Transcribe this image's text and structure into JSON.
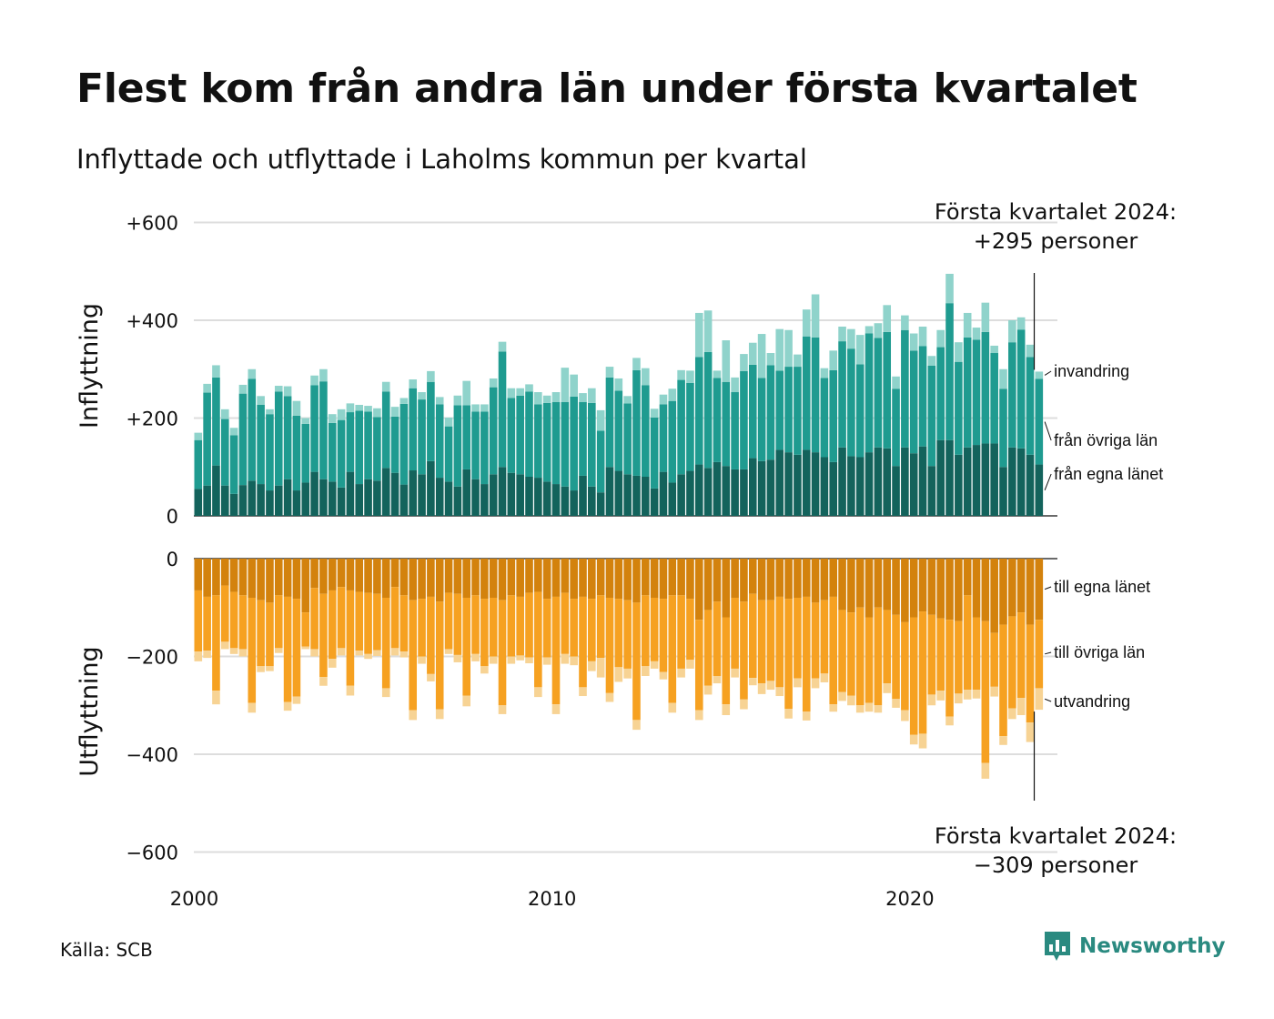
{
  "title": "Flest kom från andra län under första kvartalet",
  "subtitle": "Inflyttade och utflyttade i Laholms kommun per kvartal",
  "source": "Källa: SCB",
  "brand": "Newsworthy",
  "colors": {
    "in_same": "#13635c",
    "in_other": "#1f9b90",
    "in_immig": "#8fd3cb",
    "out_same": "#d3820d",
    "out_other": "#f6a121",
    "out_emig": "#f7d394",
    "grid": "#dddddd"
  },
  "chart_data": {
    "type": "bar",
    "stacked": true,
    "x_ticks": [
      2000,
      2010,
      2020
    ],
    "top_panel": {
      "ylabel": "Inflyttning",
      "ylim": [
        0,
        600
      ],
      "y_ticks": [
        {
          "v": 0,
          "t": "0"
        },
        {
          "v": 200,
          "t": "+200"
        },
        {
          "v": 400,
          "t": "+400"
        },
        {
          "v": 600,
          "t": "+600"
        }
      ],
      "series": [
        {
          "name": "från egna länet",
          "values": [
            55,
            62,
            103,
            62,
            45,
            63,
            72,
            65,
            52,
            62,
            75,
            52,
            68,
            90,
            75,
            70,
            58,
            90,
            65,
            75,
            72,
            98,
            88,
            64,
            93,
            85,
            112,
            78,
            70,
            60,
            95,
            75,
            65,
            85,
            100,
            88,
            85,
            80,
            78,
            70,
            65,
            60,
            52,
            82,
            60,
            48,
            100,
            92,
            85,
            82,
            80,
            56,
            90,
            68,
            85,
            92,
            105,
            98,
            110,
            102,
            95,
            95,
            118,
            112,
            115,
            135,
            130,
            125,
            135,
            130,
            120,
            110,
            140,
            122,
            120,
            130,
            140,
            138,
            102,
            140,
            128,
            142,
            102,
            155,
            155,
            125,
            140,
            145,
            148,
            148,
            100,
            140,
            138,
            125,
            105
          ],
          "label_stack": "från egna länet"
        },
        {
          "name": "från övriga län",
          "values": [
            100,
            190,
            180,
            136,
            120,
            187,
            208,
            162,
            156,
            192,
            170,
            153,
            120,
            177,
            200,
            120,
            138,
            122,
            150,
            138,
            130,
            156,
            115,
            165,
            168,
            153,
            162,
            150,
            113,
            166,
            131,
            138,
            148,
            178,
            236,
            153,
            161,
            174,
            150,
            161,
            168,
            173,
            192,
            151,
            171,
            126,
            183,
            164,
            145,
            216,
            187,
            145,
            138,
            167,
            193,
            180,
            220,
            237,
            172,
            172,
            158,
            201,
            191,
            170,
            193,
            162,
            175,
            180,
            232,
            235,
            162,
            188,
            217,
            220,
            190,
            243,
            224,
            238,
            158,
            240,
            210,
            205,
            205,
            190,
            280,
            190,
            225,
            215,
            228,
            185,
            160,
            215,
            243,
            200,
            175
          ]
        },
        {
          "name": "invandring",
          "values": [
            15,
            18,
            25,
            20,
            15,
            18,
            20,
            18,
            10,
            12,
            20,
            30,
            12,
            20,
            25,
            18,
            22,
            18,
            12,
            12,
            18,
            20,
            20,
            12,
            18,
            15,
            22,
            15,
            18,
            20,
            50,
            15,
            15,
            18,
            20,
            20,
            15,
            15,
            25,
            15,
            20,
            70,
            45,
            18,
            30,
            42,
            22,
            25,
            15,
            25,
            35,
            18,
            20,
            25,
            20,
            25,
            90,
            85,
            15,
            85,
            30,
            35,
            45,
            90,
            25,
            85,
            75,
            25,
            55,
            88,
            20,
            40,
            30,
            40,
            60,
            15,
            30,
            55,
            25,
            30,
            35,
            40,
            20,
            35,
            60,
            40,
            50,
            25,
            60,
            15,
            40,
            45,
            25,
            25,
            15
          ]
        }
      ]
    },
    "bottom_panel": {
      "ylabel": "Utflyttning",
      "ylim": [
        -600,
        0
      ],
      "y_ticks": [
        {
          "v": 0,
          "t": "0"
        },
        {
          "v": -200,
          "t": "−200"
        },
        {
          "v": -400,
          "t": "−400"
        },
        {
          "v": -600,
          "t": "−600"
        }
      ],
      "series": [
        {
          "name": "till egna länet",
          "values": [
            -65,
            -78,
            -75,
            -55,
            -68,
            -75,
            -80,
            -85,
            -90,
            -75,
            -78,
            -82,
            -110,
            -60,
            -72,
            -65,
            -58,
            -65,
            -68,
            -70,
            -72,
            -80,
            -58,
            -75,
            -85,
            -82,
            -78,
            -88,
            -70,
            -72,
            -80,
            -75,
            -82,
            -80,
            -85,
            -75,
            -78,
            -70,
            -68,
            -82,
            -78,
            -70,
            -82,
            -78,
            -82,
            -75,
            -80,
            -82,
            -85,
            -90,
            -75,
            -80,
            -82,
            -75,
            -75,
            -82,
            -125,
            -105,
            -88,
            -120,
            -80,
            -88,
            -72,
            -85,
            -85,
            -78,
            -82,
            -80,
            -78,
            -90,
            -85,
            -78,
            -105,
            -110,
            -100,
            -120,
            -100,
            -105,
            -115,
            -130,
            -120,
            -108,
            -115,
            -122,
            -125,
            -128,
            -75,
            -120,
            -128,
            -152,
            -135,
            -118,
            -110,
            -135,
            -125
          ]
        },
        {
          "name": "till övriga län",
          "values": [
            -125,
            -110,
            -195,
            -115,
            -115,
            -110,
            -215,
            -135,
            -130,
            -108,
            -215,
            -200,
            -70,
            -125,
            -170,
            -140,
            -125,
            -195,
            -120,
            -125,
            -115,
            -185,
            -125,
            -115,
            -225,
            -118,
            -158,
            -220,
            -115,
            -125,
            -200,
            -120,
            -138,
            -120,
            -215,
            -125,
            -120,
            -132,
            -195,
            -120,
            -220,
            -125,
            -118,
            -185,
            -128,
            -128,
            -195,
            -140,
            -140,
            -240,
            -145,
            -130,
            -150,
            -220,
            -150,
            -125,
            -185,
            -155,
            -152,
            -178,
            -145,
            -200,
            -172,
            -170,
            -165,
            -185,
            -225,
            -165,
            -235,
            -155,
            -150,
            -220,
            -168,
            -170,
            -200,
            -175,
            -200,
            -150,
            -172,
            -180,
            -240,
            -250,
            -163,
            -148,
            -198,
            -148,
            -193,
            -148,
            -290,
            -110,
            -228,
            -188,
            -175,
            -200,
            -140
          ]
        },
        {
          "name": "utvandring",
          "values": [
            -20,
            -15,
            -28,
            -15,
            -12,
            -15,
            -20,
            -12,
            -10,
            -10,
            -18,
            -15,
            -5,
            -15,
            -18,
            -18,
            -15,
            -20,
            -10,
            -10,
            -12,
            -18,
            -15,
            -12,
            -20,
            -15,
            -15,
            -20,
            -10,
            -15,
            -22,
            -15,
            -15,
            -15,
            -18,
            -15,
            -10,
            -12,
            -20,
            -15,
            -20,
            -20,
            -18,
            -18,
            -20,
            -40,
            -18,
            -30,
            -20,
            -20,
            -20,
            -15,
            -15,
            -20,
            -18,
            -18,
            -20,
            -18,
            -15,
            -22,
            -18,
            -20,
            -15,
            -22,
            -18,
            -18,
            -20,
            -18,
            -18,
            -20,
            -18,
            -15,
            -18,
            -20,
            -15,
            -18,
            -15,
            -20,
            -18,
            -22,
            -20,
            -30,
            -22,
            -20,
            -18,
            -20,
            -20,
            -18,
            -32,
            -20,
            -18,
            -22,
            -35,
            -40,
            -44
          ]
        }
      ]
    },
    "annotations": {
      "top": [
        "Första kvartalet 2024:",
        "+295 personer"
      ],
      "bottom": [
        "Första kvartalet 2024:",
        "−309 personer"
      ]
    }
  }
}
